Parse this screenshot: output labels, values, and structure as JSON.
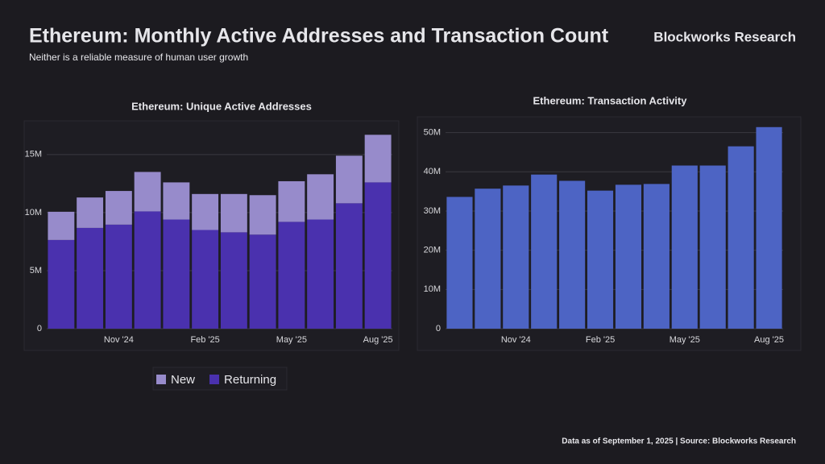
{
  "header": {
    "title": "Ethereum: Monthly Active Addresses and Transaction Count",
    "subtitle": "Neither is a reliable measure of human user growth",
    "brand": "Blockworks Research"
  },
  "footer": "Data as of September 1, 2025 | Source: Blockworks Research",
  "chart_data": [
    {
      "type": "stacked_bar",
      "title": "Ethereum: Unique Active Addresses",
      "categories": [
        null,
        null,
        "Nov '24",
        null,
        null,
        "Feb '25",
        null,
        null,
        "May '25",
        null,
        null,
        "Aug '25"
      ],
      "series": [
        {
          "name": "Returning",
          "color": "#4a31ae",
          "values": [
            7640000,
            8680000,
            8960000,
            10100000,
            9400000,
            8500000,
            8300000,
            8100000,
            9200000,
            9400000,
            10800000,
            12600000
          ]
        },
        {
          "name": "New",
          "color": "#978bcb",
          "values": [
            2430000,
            2620000,
            2900000,
            3400000,
            3200000,
            3100000,
            3300000,
            3400000,
            3500000,
            3900000,
            4100000,
            4100000
          ]
        }
      ],
      "legend_order": [
        "New",
        "Returning"
      ],
      "ylim": [
        0,
        17000000
      ],
      "yticks": [
        0,
        {
          "value": 5000000,
          "label": "5M"
        },
        {
          "value": 10000000,
          "label": "10M"
        },
        {
          "value": 15000000,
          "label": "15M"
        }
      ],
      "grid": true
    },
    {
      "type": "bar",
      "title": "Ethereum: Transaction Activity",
      "categories": [
        null,
        null,
        "Nov '24",
        null,
        null,
        "Feb '25",
        null,
        null,
        "May '25",
        null,
        null,
        "Aug '25"
      ],
      "values": [
        33600000,
        35700000,
        36500000,
        39300000,
        37700000,
        35200000,
        36700000,
        36900000,
        41600000,
        41600000,
        46500000,
        51400000
      ],
      "color": "#4d64c4",
      "ylim": [
        0,
        53000000
      ],
      "yticks": [
        0,
        {
          "value": 10000000,
          "label": "10M"
        },
        {
          "value": 20000000,
          "label": "20M"
        },
        {
          "value": 30000000,
          "label": "30M"
        },
        {
          "value": 40000000,
          "label": "40M"
        },
        {
          "value": 50000000,
          "label": "50M"
        }
      ],
      "grid": true
    }
  ]
}
